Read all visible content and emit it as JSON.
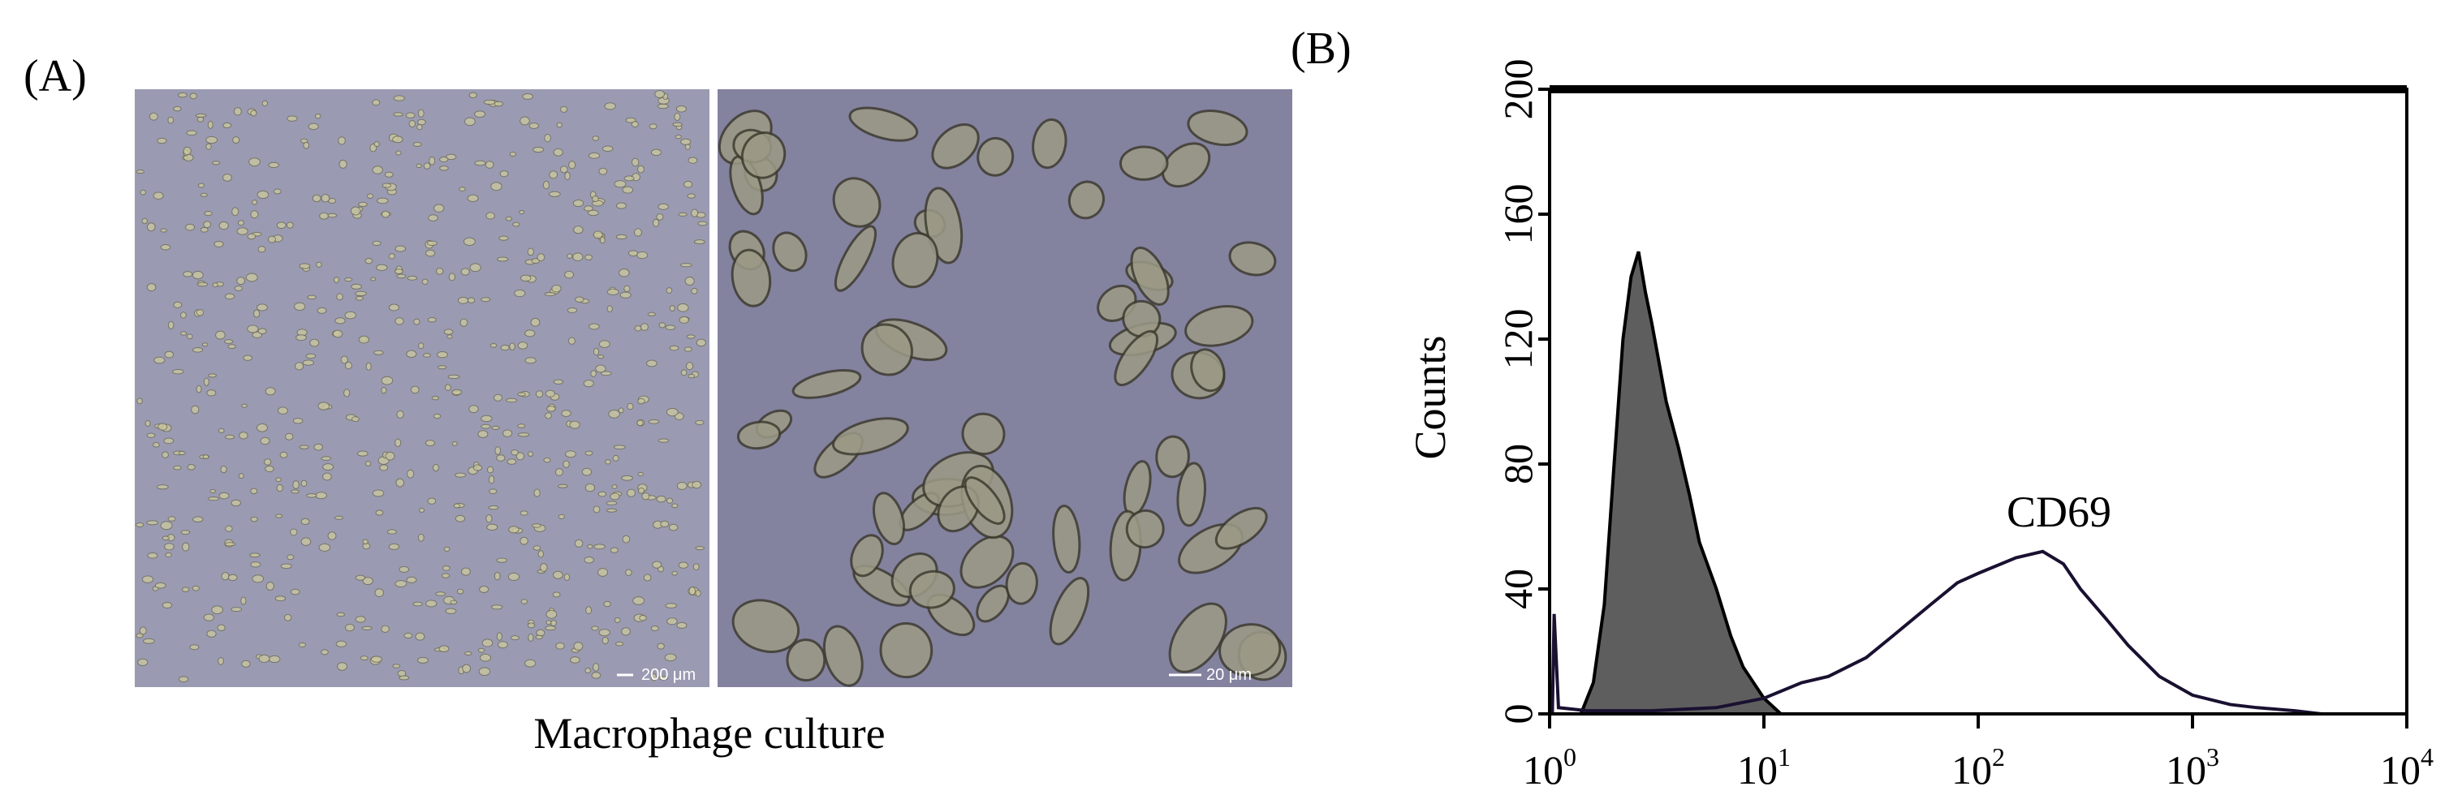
{
  "panel_a": {
    "label": "(A)",
    "caption": "Macrophage culture",
    "scale_bars": [
      "200 μm",
      "20 μm"
    ]
  },
  "panel_b": {
    "label": "(B)"
  },
  "chart_data": {
    "type": "line",
    "ylabel": "Counts",
    "log_x": true,
    "xlim": [
      1,
      10000
    ],
    "ylim": [
      0,
      200
    ],
    "xticks": [
      {
        "value": 1,
        "label": "10",
        "exponent": "0"
      },
      {
        "value": 10,
        "label": "10",
        "exponent": "1"
      },
      {
        "value": 100,
        "label": "10",
        "exponent": "2"
      },
      {
        "value": 1000,
        "label": "10",
        "exponent": "3"
      },
      {
        "value": 10000,
        "label": "10",
        "exponent": "4"
      }
    ],
    "yticks": [
      0,
      40,
      80,
      120,
      160,
      200
    ],
    "series": [
      {
        "color": "#5e5e5e",
        "fill": true,
        "x": [
          1.4,
          1.6,
          1.8,
          2.0,
          2.2,
          2.4,
          2.6,
          2.8,
          3.0,
          3.5,
          4.0,
          4.5,
          5.0,
          6.0,
          7.0,
          8.0,
          10,
          12
        ],
        "values": [
          0,
          10,
          35,
          80,
          120,
          140,
          148,
          135,
          125,
          100,
          85,
          70,
          55,
          40,
          25,
          15,
          5,
          0
        ]
      },
      {
        "name": "CD69",
        "color": "#1a1030",
        "fill": false,
        "x": [
          1.03,
          1.05,
          1.1,
          1.5,
          3,
          6,
          10,
          15,
          20,
          30,
          40,
          60,
          80,
          100,
          150,
          200,
          250,
          300,
          400,
          500,
          700,
          1000,
          1500,
          2000,
          3000,
          4000
        ],
        "values": [
          0,
          32,
          2,
          1,
          1,
          2,
          5,
          10,
          12,
          18,
          25,
          35,
          42,
          45,
          50,
          52,
          48,
          40,
          30,
          22,
          12,
          6,
          3,
          2,
          1,
          0
        ]
      }
    ]
  }
}
